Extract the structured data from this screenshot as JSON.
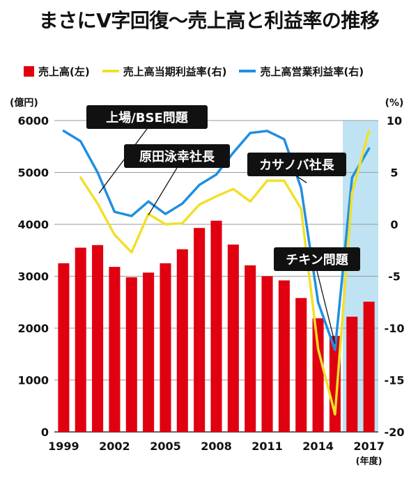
{
  "chart_data": {
    "type": "bar+line",
    "title": "まさにV字回復〜売上高と利益率の推移",
    "legend": [
      {
        "name": "売上高(左)",
        "color": "#e0000f",
        "kind": "bar"
      },
      {
        "name": "売上高当期利益率(右)",
        "color": "#f1e02a",
        "kind": "line"
      },
      {
        "name": "売上高営業利益率(右)",
        "color": "#1f8fe0",
        "kind": "line"
      }
    ],
    "left_axis_unit": "(億円)",
    "right_axis_unit": "(%)",
    "x_axis_unit": "(年度)",
    "left_ylim": [
      0,
      6000
    ],
    "right_ylim": [
      -20,
      10
    ],
    "left_ticks": [
      "0",
      "1000",
      "2000",
      "3000",
      "4000",
      "5000",
      "6000"
    ],
    "right_ticks": [
      "-20",
      "-15",
      "-10",
      "-5",
      "0",
      "5",
      "10"
    ],
    "x_tick_labels": [
      "1999",
      "2002",
      "2005",
      "2008",
      "2011",
      "2014",
      "2017"
    ],
    "years": [
      1999,
      2000,
      2001,
      2002,
      2003,
      2004,
      2005,
      2006,
      2007,
      2008,
      2009,
      2010,
      2011,
      2012,
      2013,
      2014,
      2015,
      2016,
      2017
    ],
    "sales": [
      3250,
      3550,
      3600,
      3180,
      2980,
      3070,
      3250,
      3520,
      3930,
      4070,
      3610,
      3210,
      3000,
      2920,
      2580,
      2190,
      1850,
      2220,
      2510
    ],
    "net_margin": [
      null,
      4.5,
      2,
      -1,
      -2.7,
      1,
      0,
      0.1,
      1.9,
      2.7,
      3.4,
      2.2,
      4.2,
      4.2,
      1.5,
      -12,
      -18.3,
      3,
      9
    ],
    "operating_margin": [
      9,
      8,
      5,
      1.2,
      0.8,
      2.2,
      1,
      2,
      3.8,
      4.8,
      6.9,
      8.8,
      9,
      8.2,
      3.5,
      -7.5,
      -12.1,
      4.5,
      7.3
    ],
    "highlight_years": [
      2016,
      2017
    ],
    "annotations": [
      {
        "text": "上場/BSE問題",
        "year": 2001
      },
      {
        "text": "原田泳幸社長",
        "year": 2004
      },
      {
        "text": "カサノバ社長",
        "year": 2013
      },
      {
        "text": "チキン問題",
        "year": 2015
      }
    ]
  }
}
